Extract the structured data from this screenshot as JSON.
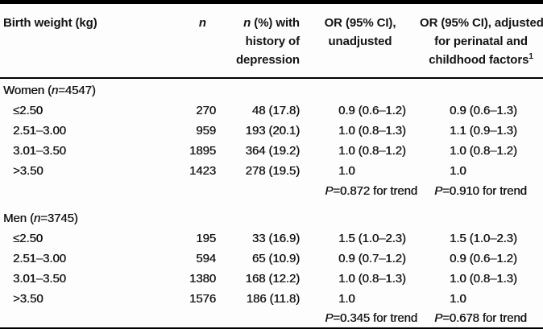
{
  "table": {
    "header": {
      "col1": "Birth weight (kg)",
      "col2": "n",
      "col3": {
        "italic": "n",
        "line1_rest": " (%) with",
        "line2": "history of",
        "line3": "depression"
      },
      "col4": {
        "line1": "OR (95% CI),",
        "line2": "unadjusted"
      },
      "col5": {
        "line1": "OR (95% CI), adjusted",
        "line2": "for perinatal and",
        "line3": "childhood factors",
        "footnote_marker": "1"
      }
    },
    "sections": [
      {
        "title_pre": "Women (",
        "title_n": "n",
        "title_post": "=4547)",
        "rows": [
          {
            "label": "≤2.50",
            "n": "270",
            "pct": "48 (17.8)",
            "or_unadjusted": "0.9 (0.6–1.2)",
            "or_adjusted": "0.9 (0.6–1.3)"
          },
          {
            "label": "2.51–3.00",
            "n": "959",
            "pct": "193 (20.1)",
            "or_unadjusted": "1.0 (0.8–1.3)",
            "or_adjusted": "1.1 (0.9–1.3)"
          },
          {
            "label": "3.01–3.50",
            "n": "1895",
            "pct": "364 (19.2)",
            "or_unadjusted": "1.0 (0.8–1.2)",
            "or_adjusted": "1.0 (0.8–1.2)"
          },
          {
            "label": ">3.50",
            "n": "1423",
            "pct": "278 (19.5)",
            "or_unadjusted": "1.0",
            "or_adjusted": "1.0"
          }
        ],
        "trend": {
          "p_italic": "P",
          "unadjusted_rest": "=0.872 for trend",
          "adjusted_rest": "=0.910 for trend"
        }
      },
      {
        "title_pre": "Men (",
        "title_n": "n",
        "title_post": "=3745)",
        "rows": [
          {
            "label": "≤2.50",
            "n": "195",
            "pct": "33 (16.9)",
            "or_unadjusted": "1.5 (1.0–2.3)",
            "or_adjusted": "1.5 (1.0–2.3)"
          },
          {
            "label": "2.51–3.00",
            "n": "594",
            "pct": "65 (10.9)",
            "or_unadjusted": "0.9 (0.7–1.2)",
            "or_adjusted": "0.9 (0.6–1.2)"
          },
          {
            "label": "3.01–3.50",
            "n": "1380",
            "pct": "168 (12.2)",
            "or_unadjusted": "1.0 (0.8–1.3)",
            "or_adjusted": "1.0 (0.8–1.3)"
          },
          {
            "label": ">3.50",
            "n": "1576",
            "pct": "186 (11.8)",
            "or_unadjusted": "1.0",
            "or_adjusted": "1.0"
          }
        ],
        "trend": {
          "p_italic": "P",
          "unadjusted_rest": "=0.345 for trend",
          "adjusted_rest": "=0.678 for trend"
        }
      }
    ]
  }
}
